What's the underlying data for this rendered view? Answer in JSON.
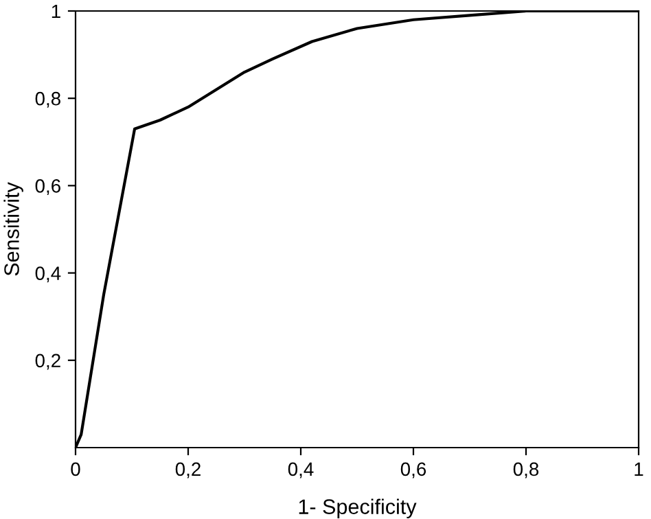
{
  "chart_data": {
    "type": "line",
    "xlabel": "1- Specificity",
    "ylabel": "Sensitivity",
    "x": [
      0,
      0.01,
      0.05,
      0.105,
      0.15,
      0.2,
      0.25,
      0.3,
      0.35,
      0.42,
      0.5,
      0.6,
      0.7,
      0.8,
      0.9,
      1
    ],
    "series": [
      {
        "color": "#000000",
        "values": [
          0,
          0.03,
          0.35,
          0.73,
          0.75,
          0.78,
          0.82,
          0.86,
          0.89,
          0.93,
          0.96,
          0.98,
          0.99,
          1.0,
          1.0,
          1.0
        ]
      }
    ],
    "xlim": [
      0,
      1
    ],
    "ylim": [
      0,
      1
    ],
    "xticks": [
      0,
      {
        "value": 0.2,
        "label": "0,2"
      },
      {
        "value": 0.4,
        "label": "0,4"
      },
      {
        "value": 0.6,
        "label": "0,6"
      },
      {
        "value": 0.8,
        "label": "0,8"
      },
      1
    ],
    "yticks": [
      {
        "value": 0.2,
        "label": "0,2"
      },
      {
        "value": 0.4,
        "label": "0,4"
      },
      {
        "value": 0.6,
        "label": "0,6"
      },
      {
        "value": 0.8,
        "label": "0,8"
      },
      1
    ],
    "grid": false,
    "legend": false,
    "marker": "none",
    "line_style": "solid"
  }
}
